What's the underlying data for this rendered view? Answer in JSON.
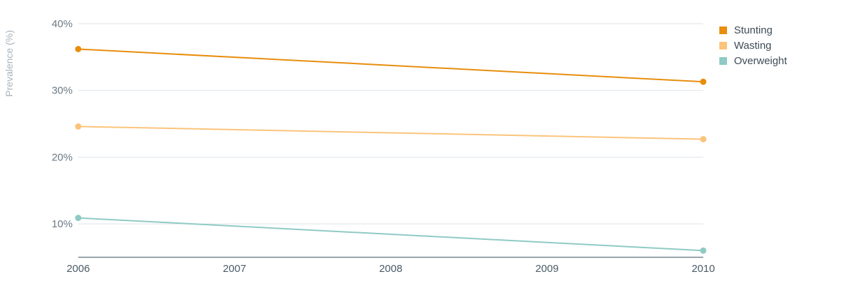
{
  "chart_data": {
    "type": "line",
    "title": "",
    "xlabel": "",
    "ylabel": "Prevalence (%)",
    "x": [
      2006,
      2007,
      2008,
      2009,
      2010
    ],
    "xticks": [
      "2006",
      "2007",
      "2008",
      "2009",
      "2010"
    ],
    "yticks": [
      {
        "value": 10,
        "label": "10%"
      },
      {
        "value": 20,
        "label": "20%"
      },
      {
        "value": 30,
        "label": "30%"
      },
      {
        "value": 40,
        "label": "40%"
      }
    ],
    "ylim": [
      5,
      40
    ],
    "xlim": [
      2006,
      2010
    ],
    "grid": true,
    "legend_position": "top-right",
    "series": [
      {
        "name": "Stunting",
        "color": "#e88d0c",
        "points": [
          [
            2006,
            36.2
          ],
          [
            2010,
            31.3
          ]
        ]
      },
      {
        "name": "Wasting",
        "color": "#fbc47c",
        "points": [
          [
            2006,
            24.6
          ],
          [
            2010,
            22.7
          ]
        ]
      },
      {
        "name": "Overweight",
        "color": "#8fcac5",
        "points": [
          [
            2006,
            10.9
          ],
          [
            2010,
            6.0
          ]
        ]
      }
    ]
  }
}
